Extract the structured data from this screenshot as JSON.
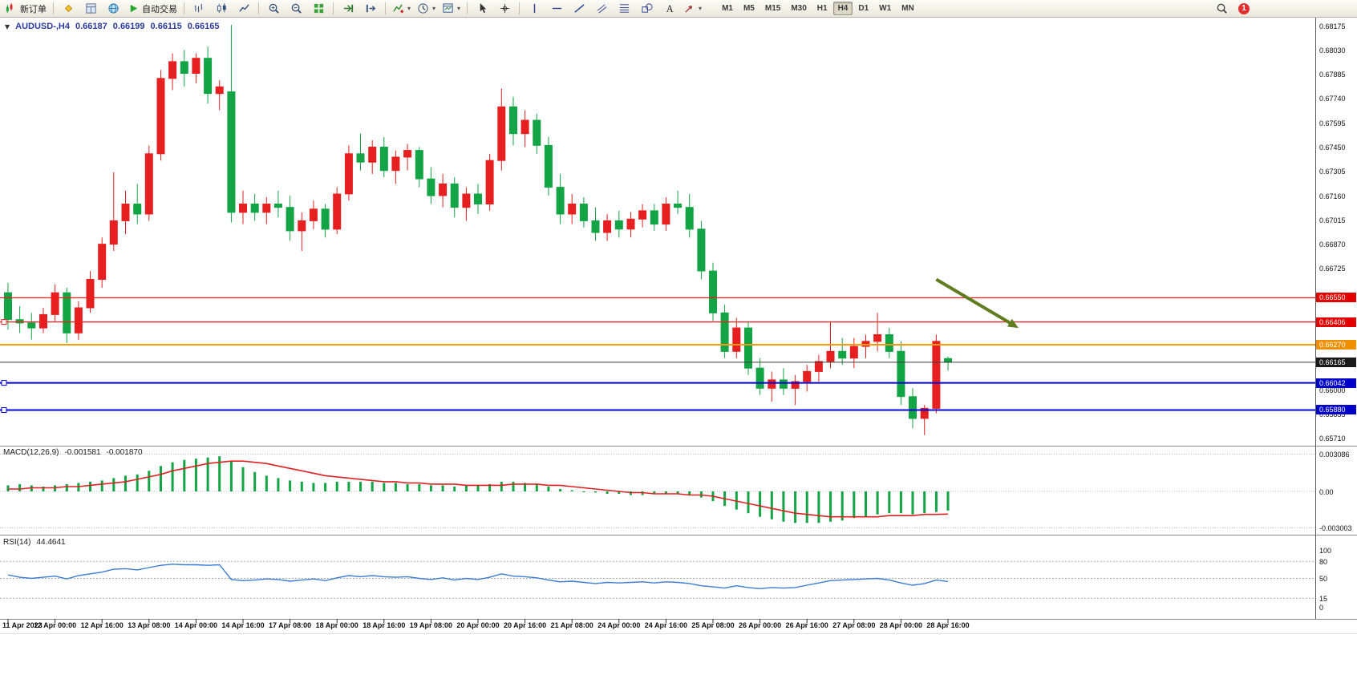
{
  "toolbar": {
    "items": [
      {
        "kind": "button",
        "name": "new-order-button",
        "icon": "neworder",
        "label": "新订单"
      },
      {
        "kind": "sep"
      },
      {
        "kind": "icon",
        "name": "expert-advisors-button",
        "icon": "expert"
      },
      {
        "kind": "icon",
        "name": "market-depth-button",
        "icon": "depth"
      },
      {
        "kind": "icon",
        "name": "web-community-button",
        "icon": "globe"
      },
      {
        "kind": "button",
        "name": "auto-trading-button",
        "icon": "autoplay",
        "label": "自动交易"
      },
      {
        "kind": "sep"
      },
      {
        "kind": "icon",
        "name": "bar-chart-mode-button",
        "icon": "bars"
      },
      {
        "kind": "icon",
        "name": "candlestick-mode-button",
        "icon": "candle"
      },
      {
        "kind": "icon",
        "name": "line-chart-mode-button",
        "icon": "line"
      },
      {
        "kind": "sep"
      },
      {
        "kind": "icon",
        "name": "zoom-in-button",
        "icon": "zoomin"
      },
      {
        "kind": "icon",
        "name": "zoom-out-button",
        "icon": "zoomout"
      },
      {
        "kind": "icon",
        "name": "tile-windows-button",
        "icon": "tile"
      },
      {
        "kind": "sep"
      },
      {
        "kind": "icon",
        "name": "auto-scroll-button",
        "icon": "autoscroll"
      },
      {
        "kind": "icon",
        "name": "chart-shift-button",
        "icon": "shift"
      },
      {
        "kind": "sep"
      },
      {
        "kind": "icon",
        "name": "indicators-menu-button",
        "icon": "indicator",
        "caret": true
      },
      {
        "kind": "icon",
        "name": "periodicity-menu-button",
        "icon": "clock",
        "caret": true
      },
      {
        "kind": "icon",
        "name": "templates-menu-button",
        "icon": "template",
        "caret": true
      },
      {
        "kind": "sep"
      },
      {
        "kind": "icon",
        "name": "cursor-tool-button",
        "icon": "cursor"
      },
      {
        "kind": "icon",
        "name": "crosshair-tool-button",
        "icon": "crosshair"
      },
      {
        "kind": "sep"
      },
      {
        "kind": "icon",
        "name": "vertical-line-tool-button",
        "icon": "vline"
      },
      {
        "kind": "icon",
        "name": "horizontal-line-tool-button",
        "icon": "hline"
      },
      {
        "kind": "icon",
        "name": "trendline-tool-button",
        "icon": "trend"
      },
      {
        "kind": "icon",
        "name": "channel-tool-button",
        "icon": "channel"
      },
      {
        "kind": "icon",
        "name": "fibonacci-tool-button",
        "icon": "fibo"
      },
      {
        "kind": "icon",
        "name": "shapes-tool-button",
        "icon": "shapes"
      },
      {
        "kind": "icon",
        "name": "text-tool-button",
        "icon": "text"
      },
      {
        "kind": "icon",
        "name": "arrows-tool-button",
        "icon": "arrowtool",
        "caret": true
      }
    ],
    "timeframes": [
      "M1",
      "M5",
      "M15",
      "M30",
      "H1",
      "H4",
      "D1",
      "W1",
      "MN"
    ],
    "active_timeframe": "H4",
    "notification_count": "1"
  },
  "chart_header": {
    "collapse_glyph": "▼",
    "symbol": "AUDUSD-,H4",
    "open": "0.66187",
    "high": "0.66199",
    "low": "0.66115",
    "close": "0.66165"
  },
  "chart_data": {
    "type": "candlestick",
    "symbol": "AUDUSD",
    "timeframe": "H4",
    "colors": {
      "bull": "#e62020",
      "bear": "#12a445",
      "note": "red = bullish, green = bearish"
    },
    "price_axis": {
      "max": 0.68175,
      "min": 0.6571,
      "step": 0.00145,
      "labels": [
        "0.68175",
        "0.68030",
        "0.67885",
        "0.67740",
        "0.67595",
        "0.67450",
        "0.67305",
        "0.67160",
        "0.67015",
        "0.66870",
        "0.66725",
        "0.66000",
        "0.65855",
        "0.65710"
      ]
    },
    "time_labels": [
      "11 Apr 2023",
      "12 Apr 00:00",
      "12 Apr 16:00",
      "13 Apr 08:00",
      "14 Apr 00:00",
      "14 Apr 16:00",
      "17 Apr 08:00",
      "18 Apr 00:00",
      "18 Apr 16:00",
      "19 Apr 08:00",
      "20 Apr 00:00",
      "20 Apr 16:00",
      "21 Apr 08:00",
      "24 Apr 00:00",
      "24 Apr 16:00",
      "25 Apr 08:00",
      "26 Apr 00:00",
      "26 Apr 16:00",
      "27 Apr 08:00",
      "28 Apr 00:00",
      "28 Apr 16:00"
    ],
    "label_every_n_candles": 4,
    "candles": [
      [
        0.6658,
        0.6664,
        0.6636,
        0.6642
      ],
      [
        0.6642,
        0.665,
        0.6634,
        0.664
      ],
      [
        0.664,
        0.6646,
        0.663,
        0.6637
      ],
      [
        0.6637,
        0.6649,
        0.6634,
        0.6645
      ],
      [
        0.6645,
        0.6663,
        0.6641,
        0.6658
      ],
      [
        0.6658,
        0.6661,
        0.6628,
        0.6634
      ],
      [
        0.6634,
        0.6653,
        0.663,
        0.6649
      ],
      [
        0.6649,
        0.6671,
        0.6646,
        0.6666
      ],
      [
        0.6666,
        0.6691,
        0.6661,
        0.6687
      ],
      [
        0.6687,
        0.673,
        0.6683,
        0.6701
      ],
      [
        0.6701,
        0.6719,
        0.6693,
        0.6711
      ],
      [
        0.6711,
        0.6723,
        0.6699,
        0.6705
      ],
      [
        0.6705,
        0.6746,
        0.6701,
        0.6741
      ],
      [
        0.6741,
        0.6791,
        0.6737,
        0.6786
      ],
      [
        0.6786,
        0.6801,
        0.6779,
        0.6796
      ],
      [
        0.6796,
        0.6803,
        0.6781,
        0.6789
      ],
      [
        0.6789,
        0.6801,
        0.6783,
        0.6798
      ],
      [
        0.6798,
        0.6805,
        0.6771,
        0.6777
      ],
      [
        0.6777,
        0.6785,
        0.6767,
        0.6781
      ],
      [
        0.6778,
        0.6818,
        0.67,
        0.6706
      ],
      [
        0.6706,
        0.6719,
        0.6699,
        0.6711
      ],
      [
        0.6711,
        0.6717,
        0.6701,
        0.6706
      ],
      [
        0.6706,
        0.6715,
        0.6699,
        0.6711
      ],
      [
        0.6711,
        0.6719,
        0.6703,
        0.6709
      ],
      [
        0.6709,
        0.6716,
        0.6689,
        0.6695
      ],
      [
        0.6695,
        0.6706,
        0.6683,
        0.6701
      ],
      [
        0.6701,
        0.6713,
        0.6696,
        0.6708
      ],
      [
        0.6708,
        0.6711,
        0.6691,
        0.6696
      ],
      [
        0.6696,
        0.6721,
        0.6693,
        0.6717
      ],
      [
        0.6717,
        0.6746,
        0.6713,
        0.6741
      ],
      [
        0.6741,
        0.6753,
        0.6731,
        0.6736
      ],
      [
        0.6736,
        0.6749,
        0.6729,
        0.6745
      ],
      [
        0.6745,
        0.6751,
        0.6727,
        0.6731
      ],
      [
        0.6731,
        0.6743,
        0.6723,
        0.6739
      ],
      [
        0.6739,
        0.6747,
        0.6731,
        0.6743
      ],
      [
        0.6743,
        0.6745,
        0.6721,
        0.6726
      ],
      [
        0.6726,
        0.6733,
        0.6711,
        0.6716
      ],
      [
        0.6716,
        0.6729,
        0.6709,
        0.6723
      ],
      [
        0.6723,
        0.6727,
        0.6703,
        0.6709
      ],
      [
        0.6709,
        0.6721,
        0.6701,
        0.6717
      ],
      [
        0.6717,
        0.6723,
        0.6705,
        0.6711
      ],
      [
        0.6711,
        0.6741,
        0.6707,
        0.6737
      ],
      [
        0.6737,
        0.678,
        0.6731,
        0.6769
      ],
      [
        0.6769,
        0.6775,
        0.6746,
        0.6753
      ],
      [
        0.6753,
        0.6767,
        0.6745,
        0.6761
      ],
      [
        0.6761,
        0.6765,
        0.6741,
        0.6746
      ],
      [
        0.6746,
        0.6751,
        0.6716,
        0.6721
      ],
      [
        0.6721,
        0.6729,
        0.6699,
        0.6705
      ],
      [
        0.6705,
        0.6717,
        0.6699,
        0.6711
      ],
      [
        0.6711,
        0.6715,
        0.6697,
        0.6701
      ],
      [
        0.6701,
        0.6709,
        0.6689,
        0.6694
      ],
      [
        0.6694,
        0.6705,
        0.6689,
        0.6701
      ],
      [
        0.6701,
        0.6707,
        0.6691,
        0.6696
      ],
      [
        0.6696,
        0.6706,
        0.6691,
        0.6702
      ],
      [
        0.6702,
        0.6711,
        0.6697,
        0.6707
      ],
      [
        0.6707,
        0.6711,
        0.6695,
        0.6699
      ],
      [
        0.6699,
        0.6715,
        0.6695,
        0.6711
      ],
      [
        0.6711,
        0.6719,
        0.6705,
        0.6709
      ],
      [
        0.6709,
        0.6717,
        0.6691,
        0.6696
      ],
      [
        0.6696,
        0.6701,
        0.6666,
        0.6671
      ],
      [
        0.6671,
        0.6676,
        0.6641,
        0.6646
      ],
      [
        0.6646,
        0.6651,
        0.6619,
        0.6623
      ],
      [
        0.6623,
        0.6643,
        0.6619,
        0.6637
      ],
      [
        0.6637,
        0.6641,
        0.6609,
        0.6613
      ],
      [
        0.6613,
        0.6619,
        0.6597,
        0.6601
      ],
      [
        0.6601,
        0.6611,
        0.6593,
        0.6606
      ],
      [
        0.6606,
        0.6613,
        0.6597,
        0.6601
      ],
      [
        0.6601,
        0.6609,
        0.6591,
        0.6605
      ],
      [
        0.6605,
        0.6615,
        0.6599,
        0.6611
      ],
      [
        0.6611,
        0.6621,
        0.6605,
        0.6617
      ],
      [
        0.6617,
        0.6641,
        0.6613,
        0.6623
      ],
      [
        0.6623,
        0.6631,
        0.6615,
        0.6619
      ],
      [
        0.6619,
        0.6631,
        0.6613,
        0.6626
      ],
      [
        0.6626,
        0.6633,
        0.6619,
        0.6629
      ],
      [
        0.6629,
        0.6646,
        0.6623,
        0.6633
      ],
      [
        0.6633,
        0.6637,
        0.6619,
        0.6623
      ],
      [
        0.6623,
        0.6629,
        0.6591,
        0.6596
      ],
      [
        0.6596,
        0.6601,
        0.6577,
        0.6583
      ],
      [
        0.6583,
        0.6591,
        0.6573,
        0.6589
      ],
      [
        0.6589,
        0.6633,
        0.6586,
        0.6629
      ],
      [
        0.66187,
        0.66199,
        0.66115,
        0.66165
      ]
    ],
    "hlines": [
      {
        "price": 0.6655,
        "label": "0.66550",
        "color": "#ff1a1a",
        "width": 1.3,
        "handle": false,
        "badge": "#e20000"
      },
      {
        "price": 0.66406,
        "label": "0.66406",
        "color": "#ff1a1a",
        "width": 1.3,
        "handle": true,
        "badge": "#e20000"
      },
      {
        "price": 0.6627,
        "label": "0.66270",
        "color": "#ff9b00",
        "width": 2,
        "handle": false,
        "badge": "#f09000"
      },
      {
        "price": 0.66165,
        "label": "0.66165",
        "color": "#3a3a3a",
        "width": 1,
        "handle": false,
        "badge": "#1a1a1a"
      },
      {
        "price": 0.66042,
        "label": "0.66042",
        "color": "#0000d4",
        "width": 2,
        "handle": true,
        "badge": "#0000c8"
      },
      {
        "price": 0.6588,
        "label": "0.65880",
        "color": "#0000d4",
        "width": 2,
        "handle": true,
        "badge": "#0000c8"
      }
    ],
    "arrow_annotation": {
      "from_index": 79,
      "from_price": 0.6666,
      "to_index": 86,
      "to_price": 0.6637,
      "color": "#5f7d1e",
      "width": 4
    },
    "macd": {
      "label": "MACD(12,26,9)",
      "value_main": "-0.001581",
      "value_signal": "-0.001870",
      "scale_labels": [
        "0.003086",
        "0.00",
        "-0.003003"
      ],
      "hist_color": "#12a445",
      "signal_color": "#dd2222",
      "histogram": [
        0.0005,
        0.0006,
        0.0005,
        0.0004,
        0.0005,
        0.0006,
        0.0007,
        0.0008,
        0.0009,
        0.0011,
        0.0013,
        0.0014,
        0.0017,
        0.0021,
        0.0024,
        0.0026,
        0.0027,
        0.0028,
        0.0029,
        0.0025,
        0.002,
        0.0016,
        0.0013,
        0.0011,
        0.0009,
        0.0008,
        0.0007,
        0.0007,
        0.0008,
        0.0008,
        0.0008,
        0.0008,
        0.0007,
        0.0007,
        0.0006,
        0.0006,
        0.0005,
        0.0005,
        0.0004,
        0.0005,
        0.0005,
        0.0006,
        0.0008,
        0.0008,
        0.0007,
        0.0006,
        0.0004,
        0.0002,
        0.0001,
        0,
        -0.0001,
        -0.0002,
        -0.0002,
        -0.0003,
        -0.0003,
        -0.0002,
        -0.0002,
        -0.0002,
        -0.0003,
        -0.0005,
        -0.0008,
        -0.0012,
        -0.0015,
        -0.0018,
        -0.0021,
        -0.0023,
        -0.0025,
        -0.0026,
        -0.0026,
        -0.0026,
        -0.0025,
        -0.0024,
        -0.0022,
        -0.0021,
        -0.0019,
        -0.0018,
        -0.0018,
        -0.0019,
        -0.0018,
        -0.0017,
        -0.001581
      ],
      "signal": [
        0.0002,
        0.0002,
        0.0003,
        0.0003,
        0.0003,
        0.0004,
        0.0004,
        0.0005,
        0.0006,
        0.0007,
        0.0008,
        0.001,
        0.0012,
        0.0014,
        0.0017,
        0.0019,
        0.0021,
        0.0023,
        0.0024,
        0.0025,
        0.0025,
        0.0024,
        0.0023,
        0.0021,
        0.0019,
        0.0017,
        0.0015,
        0.0013,
        0.0012,
        0.0011,
        0.001,
        0.0009,
        0.0008,
        0.0008,
        0.0007,
        0.0007,
        0.0006,
        0.0006,
        0.0006,
        0.0005,
        0.0005,
        0.0005,
        0.0005,
        0.0006,
        0.0006,
        0.0006,
        0.0005,
        0.0005,
        0.0004,
        0.0003,
        0.0002,
        0.0001,
        0,
        -0.0001,
        -0.0001,
        -0.0002,
        -0.0002,
        -0.0002,
        -0.0003,
        -0.0003,
        -0.0004,
        -0.0006,
        -0.0008,
        -0.001,
        -0.0012,
        -0.0014,
        -0.0016,
        -0.0018,
        -0.0019,
        -0.002,
        -0.0021,
        -0.0021,
        -0.0021,
        -0.0021,
        -0.0021,
        -0.002,
        -0.002,
        -0.002,
        -0.0019,
        -0.0019,
        -0.00187
      ]
    },
    "rsi": {
      "label": "RSI(14)",
      "value": "44.4641",
      "line_color": "#3c7cd4",
      "levels": [
        80,
        50,
        15
      ],
      "axis_labels": [
        "100",
        "80",
        "50",
        "15",
        "0"
      ],
      "values": [
        56,
        52,
        50,
        52,
        54,
        49,
        55,
        58,
        61,
        66,
        67,
        65,
        69,
        73,
        75,
        74,
        74,
        73,
        74,
        48,
        46,
        47,
        49,
        48,
        45,
        47,
        49,
        46,
        51,
        55,
        53,
        55,
        53,
        52,
        53,
        50,
        48,
        51,
        47,
        50,
        48,
        52,
        58,
        54,
        53,
        51,
        47,
        44,
        45,
        43,
        41,
        43,
        42,
        43,
        44,
        42,
        44,
        43,
        41,
        37,
        35,
        33,
        37,
        34,
        32,
        34,
        33,
        34,
        38,
        42,
        46,
        47,
        48,
        49,
        50,
        47,
        42,
        38,
        41,
        47,
        44.4641
      ]
    }
  }
}
